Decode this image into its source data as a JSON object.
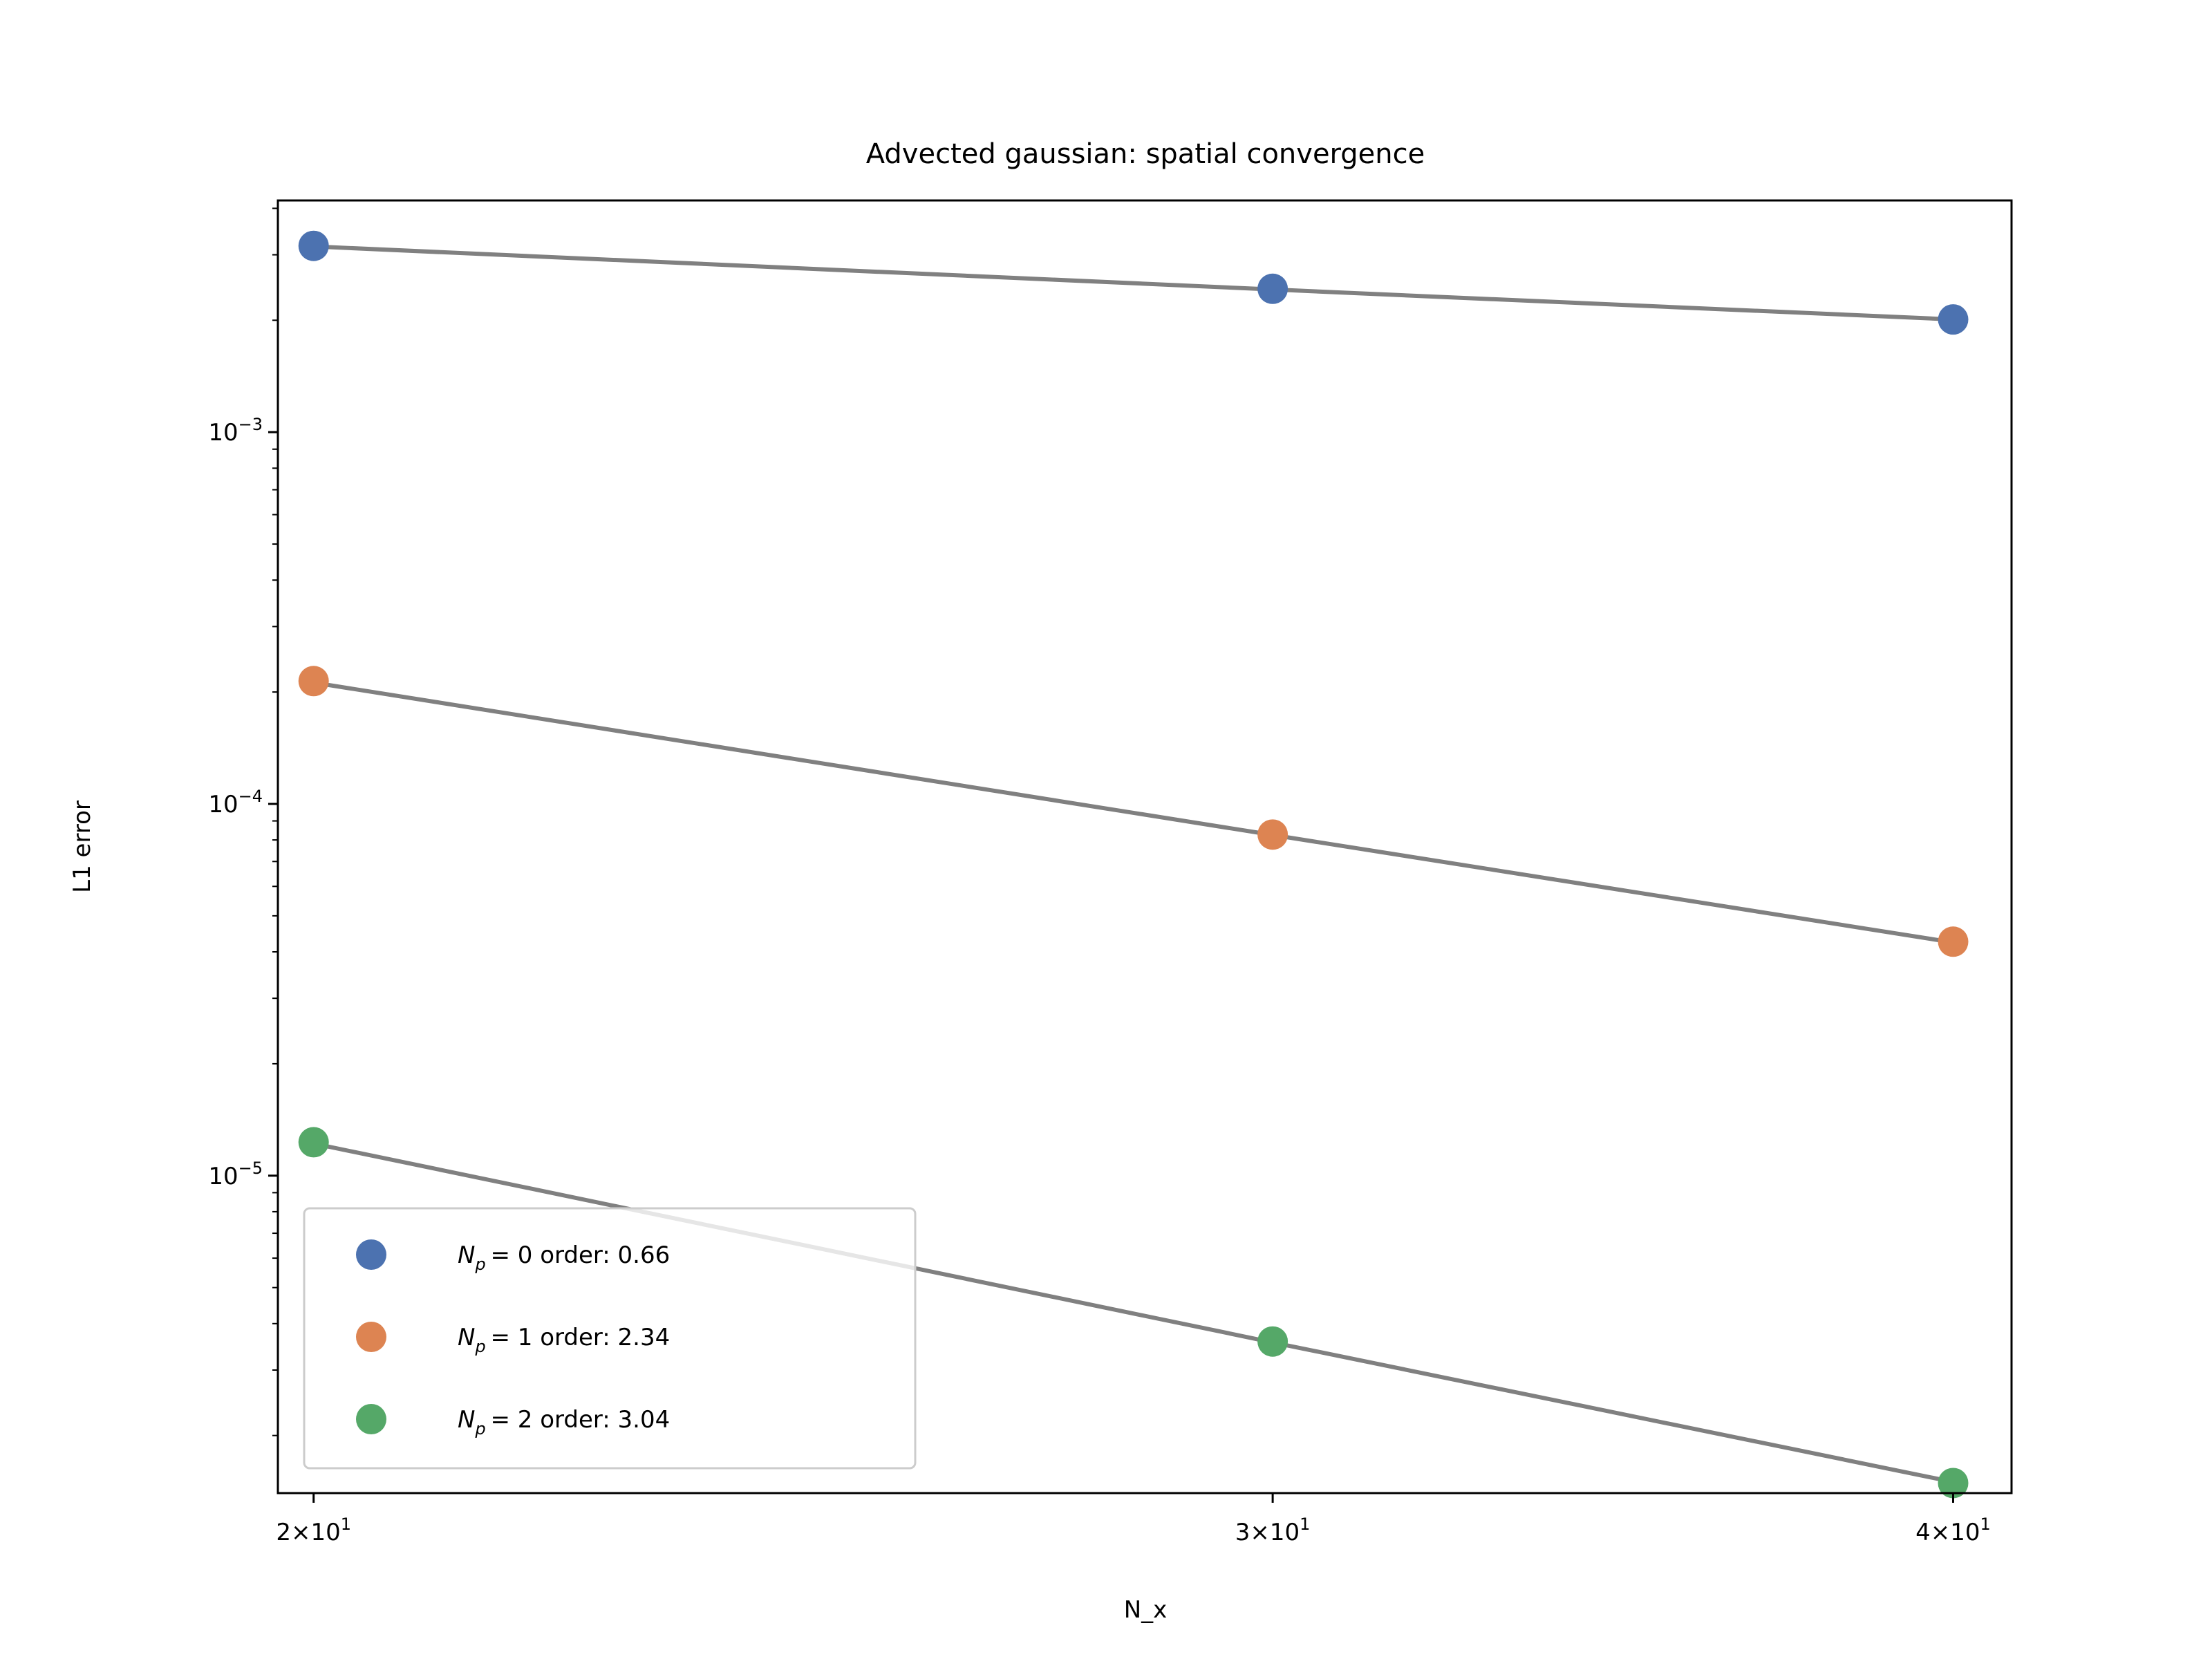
{
  "chart_data": {
    "type": "scatter",
    "title": "Advected gaussian: spatial convergence",
    "xlabel": "N_x",
    "ylabel": "L1 error",
    "xscale": "log",
    "yscale": "log",
    "xlim": [
      19.7,
      41.0
    ],
    "ylim": [
      1.4e-06,
      0.0042
    ],
    "x_ticks": [
      {
        "value": 20,
        "base": "2",
        "exp": "1"
      },
      {
        "value": 30,
        "base": "3",
        "exp": "1"
      },
      {
        "value": 40,
        "base": "4",
        "exp": "1"
      }
    ],
    "y_ticks": [
      {
        "value": 1e-05,
        "base": "10",
        "exp": "−5"
      },
      {
        "value": 0.0001,
        "base": "10",
        "exp": "−4"
      },
      {
        "value": 0.001,
        "base": "10",
        "exp": "−3"
      }
    ],
    "x": [
      20,
      30,
      40
    ],
    "series": [
      {
        "name": "N_p = 0 order: 0.66",
        "sym": "N",
        "sub": "p",
        "eq": "= 0 order: 0.66",
        "color": "#4c72b0",
        "values": [
          0.00317,
          0.00243,
          0.00201
        ],
        "fit": [
          0.00316,
          0.00242,
          0.00201
        ]
      },
      {
        "name": "N_p = 1 order: 2.34",
        "sym": "N",
        "sub": "p",
        "eq": "= 1 order: 2.34",
        "color": "#dd8452",
        "values": [
          0.000214,
          8.27e-05,
          4.26e-05
        ],
        "fit": [
          0.000212,
          8.25e-05,
          4.24e-05
        ]
      },
      {
        "name": "N_p = 2 order: 3.04",
        "sym": "N",
        "sub": "p",
        "eq": "= 2 order: 3.04",
        "color": "#55a868",
        "values": [
          1.23e-05,
          3.58e-06,
          1.49e-06
        ],
        "fit": [
          1.22e-05,
          3.56e-06,
          1.5e-06
        ]
      }
    ],
    "fit_color": "#808080",
    "grid": false,
    "legend_position": "lower-left"
  }
}
